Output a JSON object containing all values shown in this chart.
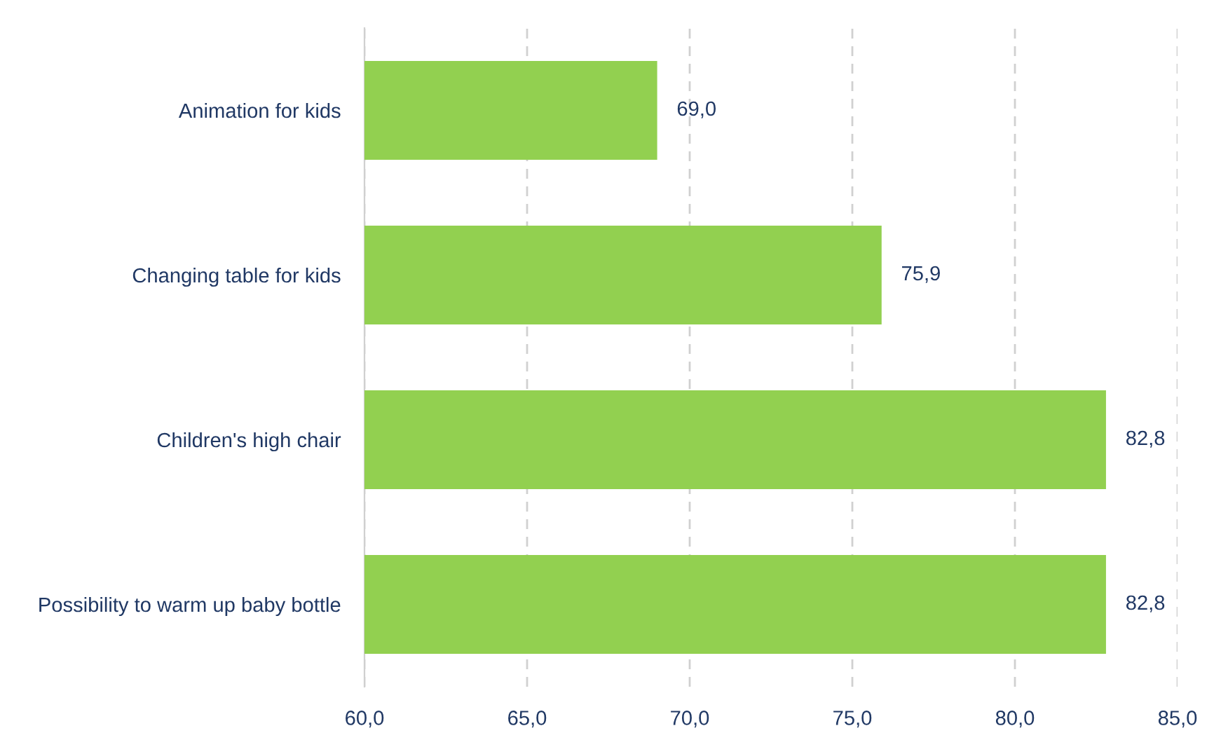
{
  "chart_data": {
    "type": "bar",
    "orientation": "horizontal",
    "categories": [
      "Animation for kids",
      "Changing table for kids",
      "Children's high chair",
      "Possibility to warm up baby bottle"
    ],
    "values": [
      69.0,
      75.9,
      82.8,
      82.8
    ],
    "value_labels": [
      "69,0",
      "75,9",
      "82,8",
      "82,8"
    ],
    "color": "#92d050",
    "xlim": [
      60,
      85
    ],
    "xticks": [
      {
        "value": 60,
        "label": "60,0"
      },
      {
        "value": 65,
        "label": "65,0"
      },
      {
        "value": 70,
        "label": "70,0"
      },
      {
        "value": 75,
        "label": "75,0"
      },
      {
        "value": 80,
        "label": "80,0"
      },
      {
        "value": 85,
        "label": "85,0"
      }
    ],
    "grid": "x",
    "legend": false
  }
}
